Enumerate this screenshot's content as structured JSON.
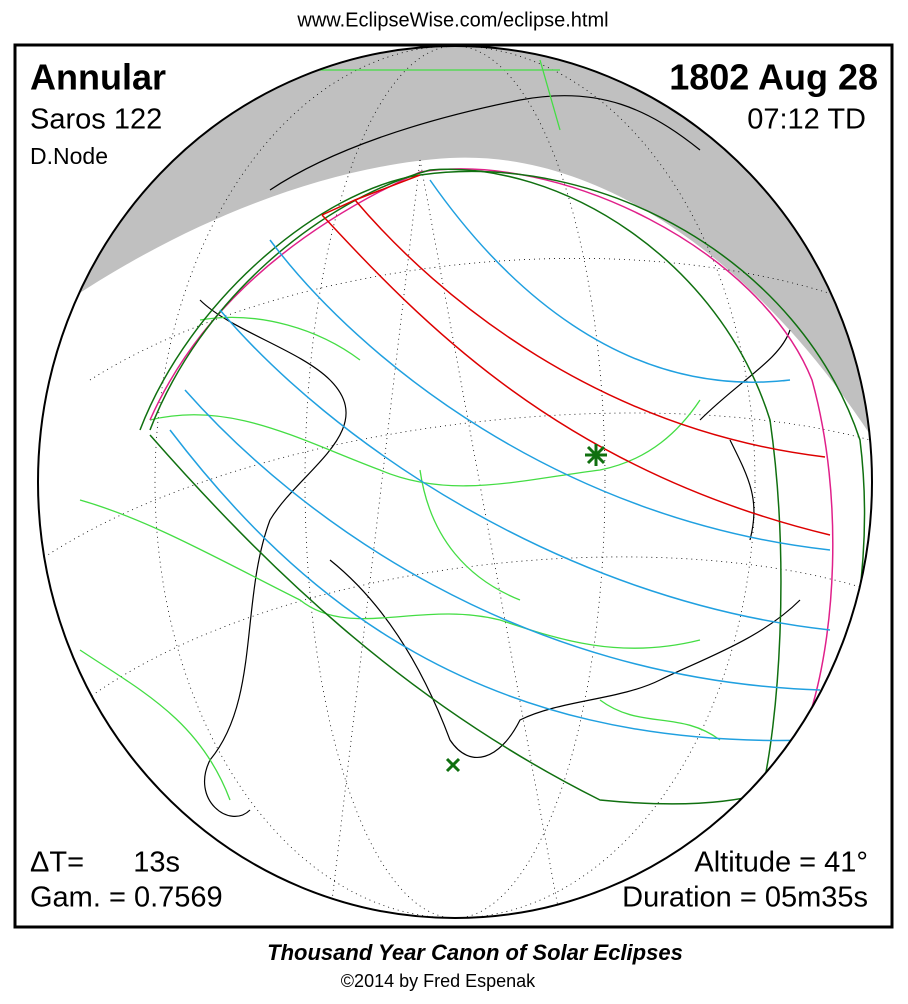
{
  "header": {
    "url": "www.EclipseWise.com/eclipse.html"
  },
  "eclipse": {
    "type": "Annular",
    "date": "1802 Aug 28",
    "saros": "Saros 122",
    "time": "07:12 TD",
    "node": "D.Node",
    "delta_t_label": "ΔT=",
    "delta_t": "13s",
    "gamma": "Gam. = 0.7569",
    "altitude": "Altitude = 41°",
    "duration": "Duration = 05m35s"
  },
  "footer": {
    "title": "Thousand Year Canon of Solar Eclipses",
    "copyright": "©2014 by Fred Espenak"
  }
}
